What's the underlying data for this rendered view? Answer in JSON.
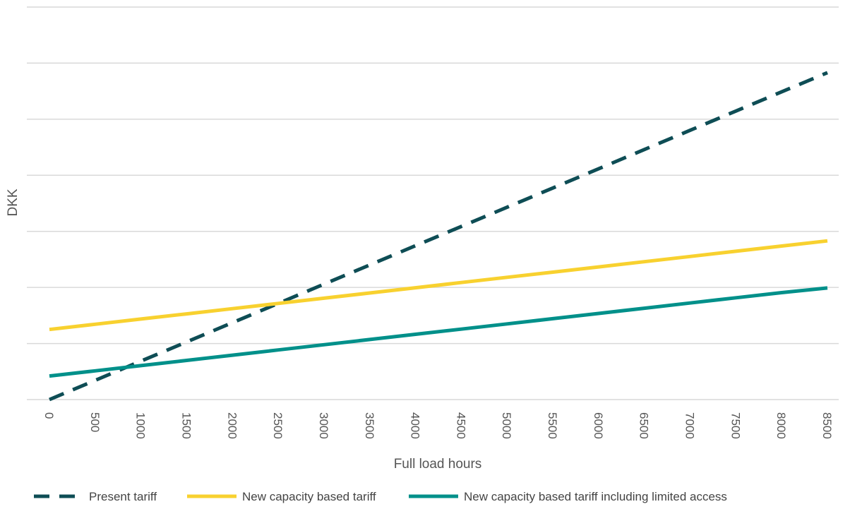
{
  "chart_data": {
    "type": "line",
    "title": "",
    "xlabel": "Full load hours",
    "ylabel": "DKK",
    "x": [
      0,
      500,
      1000,
      1500,
      2000,
      2500,
      3000,
      3500,
      4000,
      4500,
      5000,
      5500,
      6000,
      6500,
      7000,
      7500,
      8000,
      8500
    ],
    "x_tick_labels": [
      "0",
      "500",
      "1000",
      "1500",
      "2000",
      "2500",
      "3000",
      "3500",
      "4000",
      "4500",
      "5000",
      "5500",
      "6000",
      "6500",
      "7000",
      "7500",
      "8000",
      "8500"
    ],
    "ylim": [
      0,
      7
    ],
    "y_tick_labels_shown": false,
    "grid": "horizontal",
    "legend_position": "bottom",
    "series": [
      {
        "name": "Present tariff",
        "style": "dashed",
        "color": "#0E4D55",
        "values": [
          0,
          0.343,
          0.686,
          1.029,
          1.372,
          1.715,
          2.058,
          2.401,
          2.744,
          3.087,
          3.43,
          3.773,
          4.116,
          4.459,
          4.802,
          5.145,
          5.488,
          5.83
        ]
      },
      {
        "name": "New capacity based tariff",
        "style": "solid",
        "color": "#F8D12F",
        "values": [
          1.25,
          1.343,
          1.436,
          1.529,
          1.622,
          1.715,
          1.808,
          1.901,
          1.994,
          2.087,
          2.18,
          2.273,
          2.366,
          2.459,
          2.552,
          2.645,
          2.738,
          2.83
        ]
      },
      {
        "name": "New capacity based tariff including limited access",
        "style": "solid",
        "color": "#00908A",
        "values": [
          0.42,
          0.513,
          0.606,
          0.699,
          0.792,
          0.885,
          0.978,
          1.071,
          1.164,
          1.257,
          1.35,
          1.443,
          1.536,
          1.629,
          1.722,
          1.815,
          1.908,
          1.99
        ]
      }
    ]
  }
}
